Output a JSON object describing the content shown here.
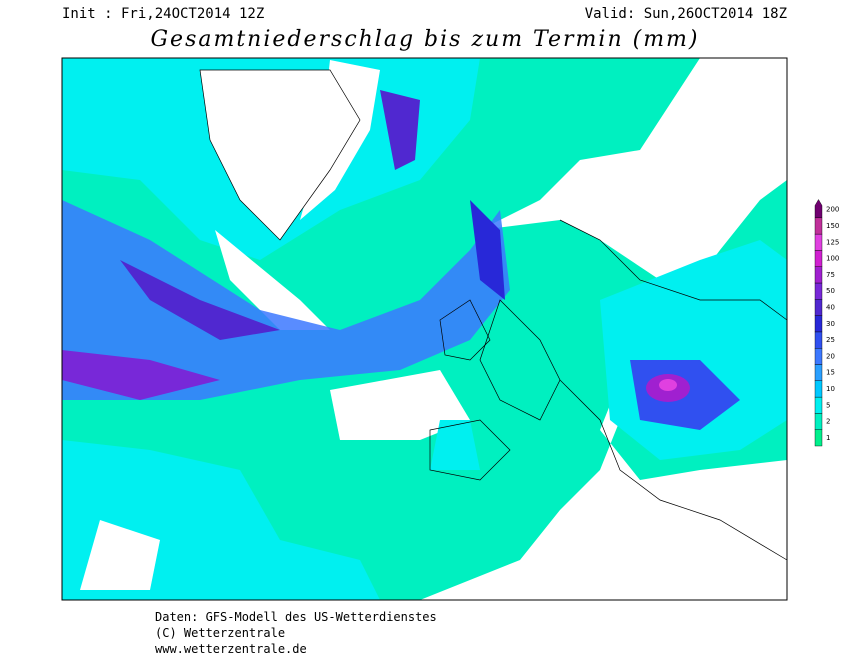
{
  "header": {
    "init": "Init : Fri,24OCT2014 12Z",
    "valid": "Valid: Sun,26OCT2014 18Z",
    "title": "Gesamtniederschlag bis zum Termin (mm)"
  },
  "legend": {
    "levels": [
      {
        "label": 1,
        "color": "#00f08c"
      },
      {
        "label": 2,
        "color": "#00f0c0"
      },
      {
        "label": 5,
        "color": "#00f0f0"
      },
      {
        "label": 10,
        "color": "#00c8ff"
      },
      {
        "label": 15,
        "color": "#2aa0ff"
      },
      {
        "label": 20,
        "color": "#3c78ff"
      },
      {
        "label": 25,
        "color": "#3050f0"
      },
      {
        "label": 30,
        "color": "#2828d8"
      },
      {
        "label": 40,
        "color": "#5028d0"
      },
      {
        "label": 50,
        "color": "#7828d8"
      },
      {
        "label": 75,
        "color": "#a020d0"
      },
      {
        "label": 100,
        "color": "#d020d0"
      },
      {
        "label": 125,
        "color": "#e040e0"
      },
      {
        "label": 150,
        "color": "#c0309a"
      },
      {
        "label": 200,
        "color": "#700070"
      }
    ]
  },
  "footer": {
    "lines": [
      "Daten: GFS-Modell des US-Wetterdienstes",
      "(C) Wetterzentrale",
      "www.wetterzentrale.de"
    ]
  }
}
